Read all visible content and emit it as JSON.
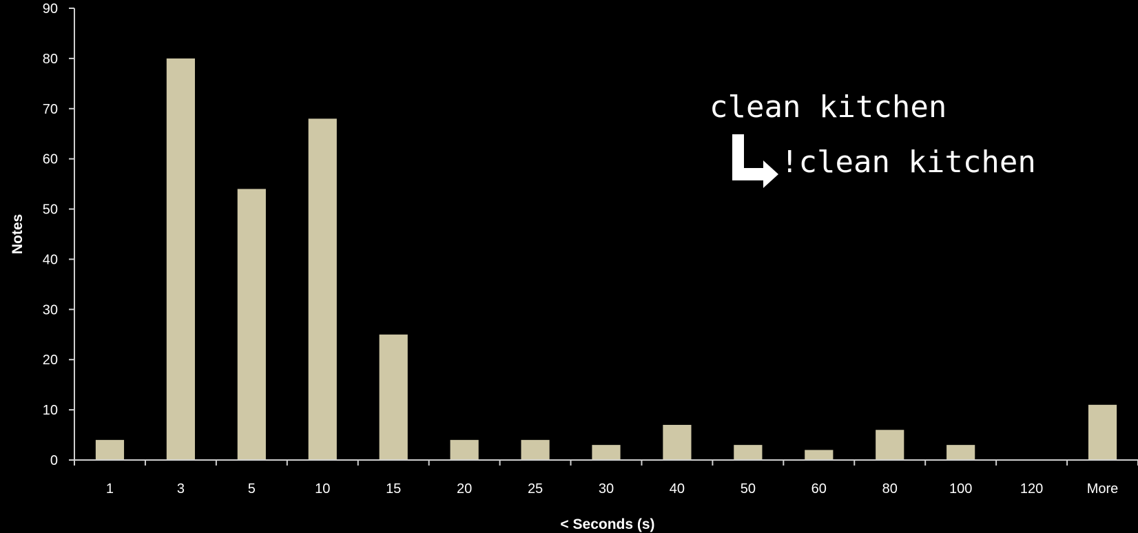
{
  "chart_data": {
    "type": "bar",
    "title": "",
    "xlabel": "< Seconds (s)",
    "ylabel": "Notes",
    "categories": [
      "1",
      "3",
      "5",
      "10",
      "15",
      "20",
      "25",
      "30",
      "40",
      "50",
      "60",
      "80",
      "100",
      "120",
      "More"
    ],
    "values": [
      4,
      80,
      54,
      68,
      25,
      4,
      4,
      3,
      7,
      3,
      2,
      6,
      3,
      0,
      11
    ],
    "ylim": [
      0,
      90
    ],
    "yticks": [
      "0",
      "10",
      "20",
      "30",
      "40",
      "50",
      "60",
      "70",
      "80",
      "90"
    ],
    "grid": false,
    "bar_color": "#cfc8a6",
    "annotations": {
      "from": "clean kitchen",
      "to": "!clean kitchen",
      "arrow_icon": "turn-right-arrow-icon"
    }
  }
}
